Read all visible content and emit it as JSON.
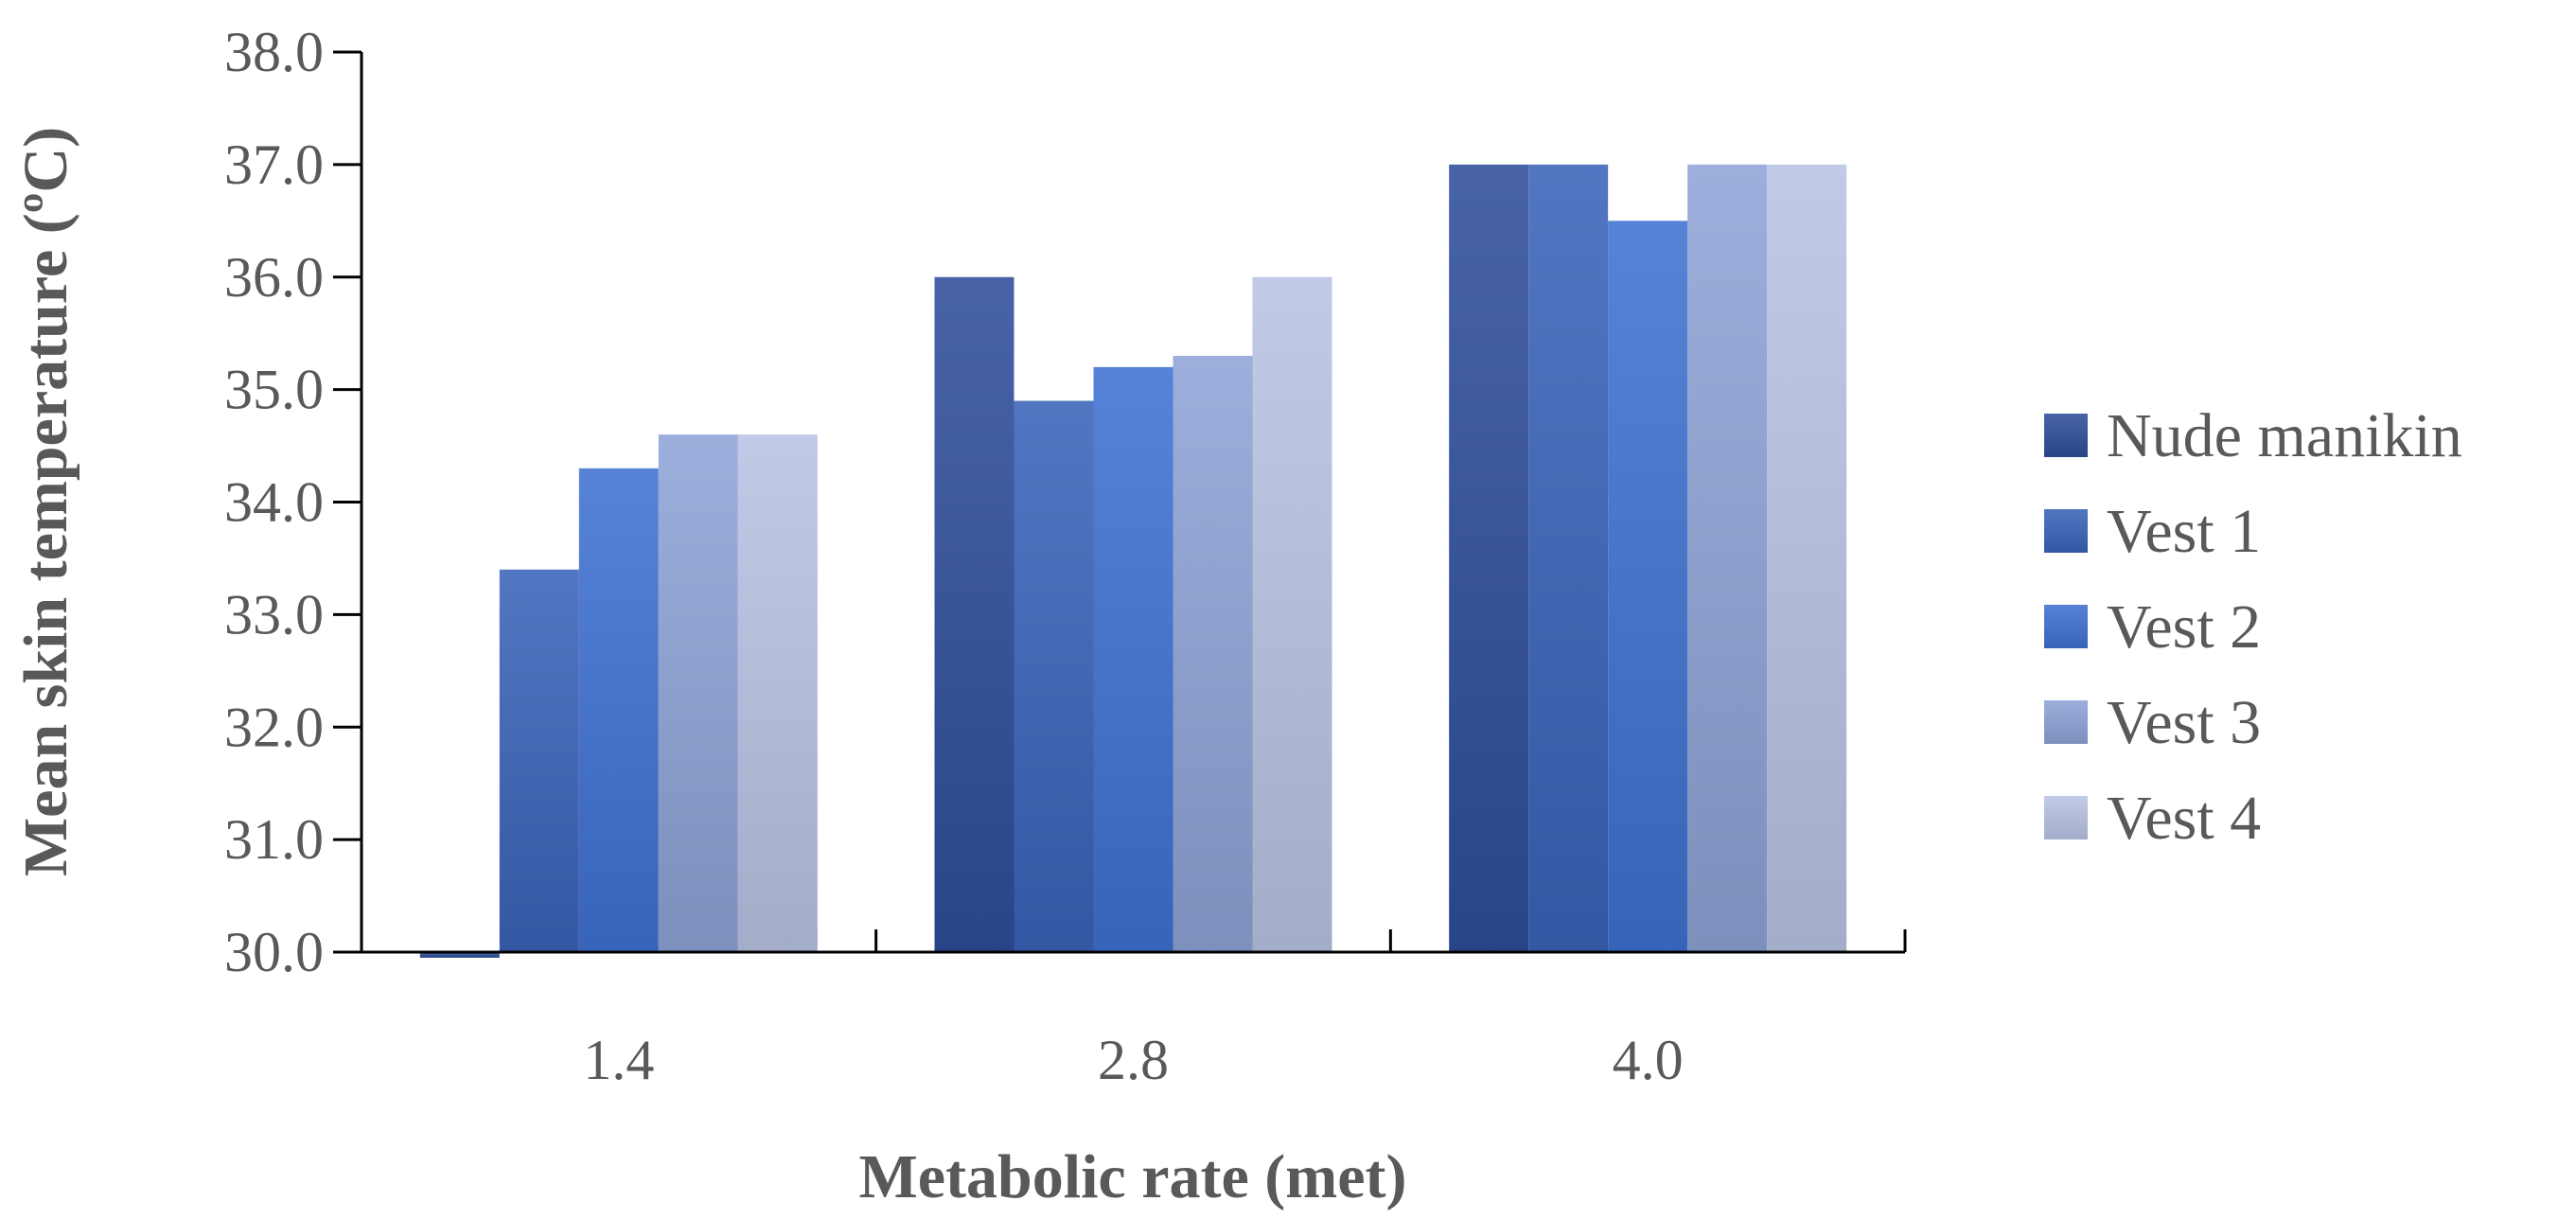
{
  "chart_data": {
    "type": "bar",
    "title": "",
    "xlabel": "Metabolic rate (met)",
    "ylabel": "Mean skin temperature (ºC)",
    "categories": [
      "1.4",
      "2.8",
      "4.0"
    ],
    "ylim": [
      30.0,
      38.0
    ],
    "yticks": [
      "30.0",
      "31.0",
      "32.0",
      "33.0",
      "34.0",
      "35.0",
      "36.0",
      "37.0",
      "38.0"
    ],
    "grid": false,
    "legend_position": "right",
    "series": [
      {
        "name": "Nude manikin",
        "values": [
          29.95,
          36.0,
          37.0
        ],
        "color": "#2F4E9C"
      },
      {
        "name": "Vest 1",
        "values": [
          33.4,
          34.9,
          37.0
        ],
        "color": "#3A63B8"
      },
      {
        "name": "Vest 2",
        "values": [
          34.3,
          35.2,
          36.5
        ],
        "color": "#3F72D2"
      },
      {
        "name": "Vest 3",
        "values": [
          34.6,
          35.3,
          37.0
        ],
        "color": "#8EA3D6"
      },
      {
        "name": "Vest 4",
        "values": [
          34.6,
          36.0,
          37.0
        ],
        "color": "#B9C3E3"
      }
    ]
  }
}
